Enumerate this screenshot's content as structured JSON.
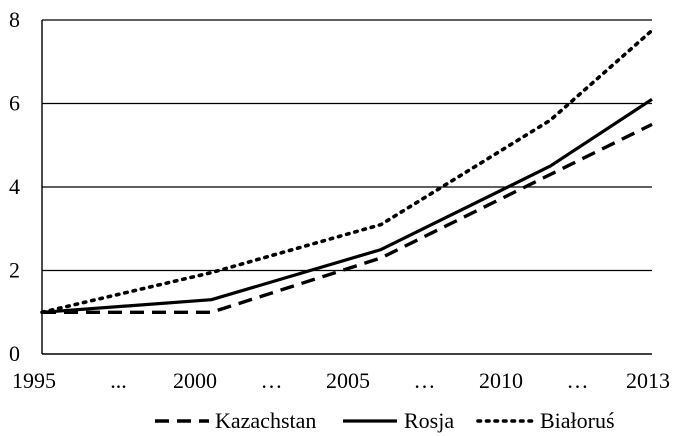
{
  "chart_data": {
    "type": "line",
    "x": [
      1995,
      2000,
      2005,
      2010,
      2013
    ],
    "x_tick_labels": [
      "1995",
      "...",
      "2000",
      "…",
      "2005",
      "…",
      "2010",
      "…",
      "2013"
    ],
    "y_tick_labels": [
      "0",
      "2",
      "4",
      "6",
      "8"
    ],
    "ylim": [
      0,
      8
    ],
    "grid": true,
    "legend_position": "bottom",
    "series": [
      {
        "name": "Kazachstan",
        "style": "dashed",
        "color": "#000000",
        "values": [
          1.0,
          1.0,
          2.3,
          4.3,
          5.5
        ]
      },
      {
        "name": "Rosja",
        "style": "solid",
        "color": "#000000",
        "values": [
          1.0,
          1.3,
          2.5,
          4.5,
          6.1
        ]
      },
      {
        "name": "Białoruś",
        "style": "dotted",
        "color": "#000000",
        "values": [
          1.0,
          1.95,
          3.1,
          5.6,
          7.75
        ]
      }
    ]
  }
}
